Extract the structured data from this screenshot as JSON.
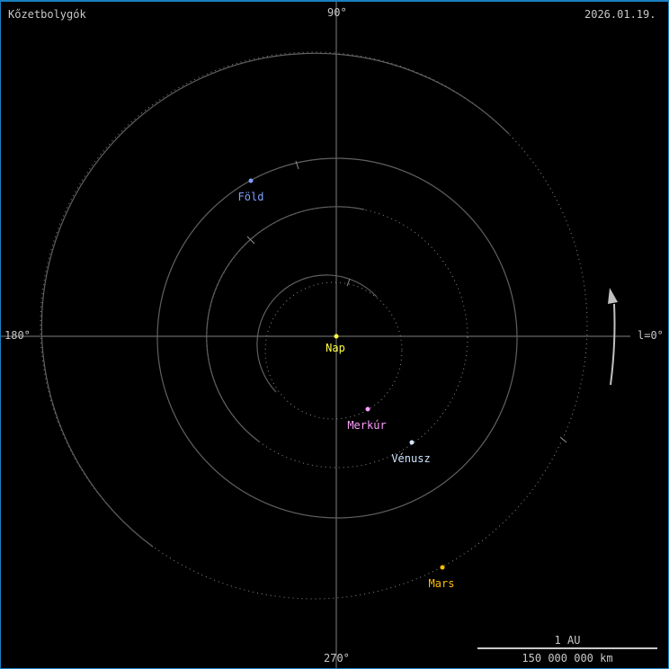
{
  "header": {
    "title": "Kőzetbolygók",
    "date": "2026.01.19."
  },
  "axes": {
    "top": "90°",
    "left": "180°",
    "right": "l=0°",
    "bottom": "270°"
  },
  "sun": {
    "name": "Nap",
    "color": "#ffff40"
  },
  "planets": [
    {
      "name": "Merkúr",
      "color": "#ff9fff"
    },
    {
      "name": "Vénusz",
      "color": "#cfe7ff"
    },
    {
      "name": "Föld",
      "color": "#7f9fff"
    },
    {
      "name": "Mars",
      "color": "#ffbf00"
    }
  ],
  "scale_bar": {
    "top_label": "1 AU",
    "bottom_label": "150 000 000 km"
  },
  "colors": {
    "background": "#000000",
    "orbit": "#606060",
    "axis": "#808080",
    "text": "#c8c8c8",
    "arrow": "#c0c0c0",
    "frame": "#1a7fc0"
  }
}
